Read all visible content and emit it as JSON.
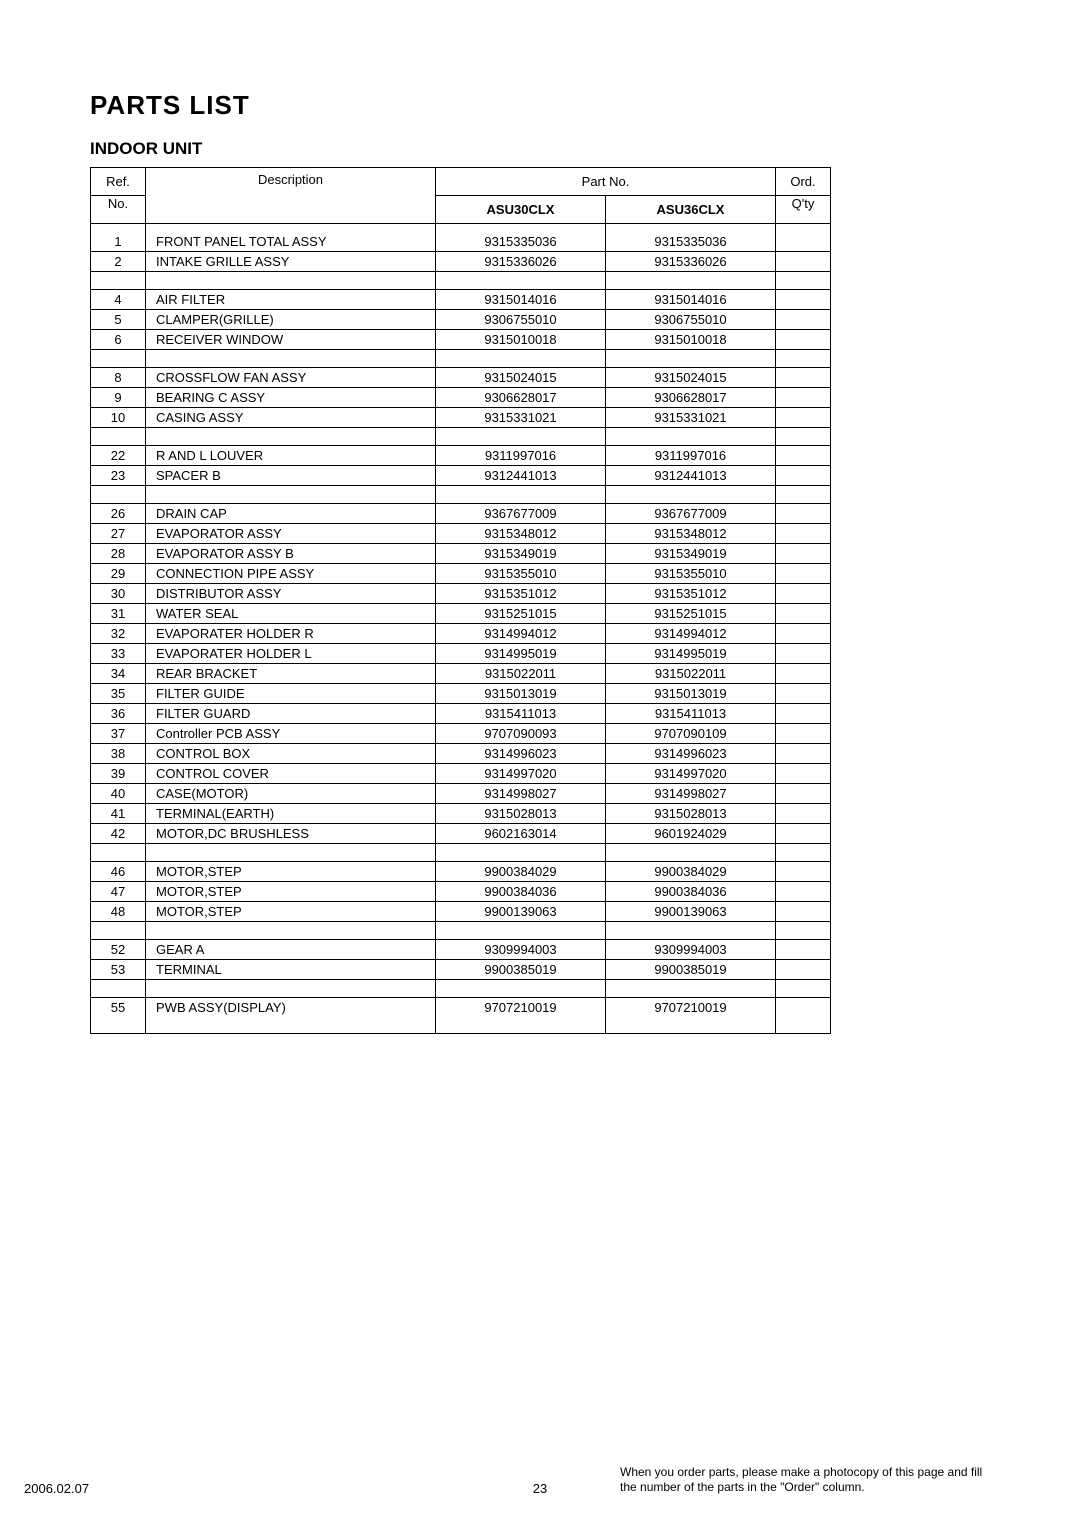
{
  "title": "PARTS LIST",
  "subtitle": "INDOOR  UNIT",
  "header": {
    "ref_top": "Ref.",
    "ref_bot": "No.",
    "description": "Description",
    "partno_span": "Part  No.",
    "model_a": "ASU30CLX",
    "model_b": "ASU36CLX",
    "ord_top": "Ord.",
    "ord_bot": "Q'ty"
  },
  "rows": [
    {
      "ref": "1",
      "desc": "FRONT PANEL TOTAL ASSY",
      "a": "9315335036",
      "b": "9315335036"
    },
    {
      "ref": "2",
      "desc": "INTAKE GRILLE ASSY",
      "a": "9315336026",
      "b": "9315336026"
    },
    {
      "blank": true
    },
    {
      "ref": "4",
      "desc": "AIR FILTER",
      "a": "9315014016",
      "b": "9315014016"
    },
    {
      "ref": "5",
      "desc": "CLAMPER(GRILLE)",
      "a": "9306755010",
      "b": "9306755010"
    },
    {
      "ref": "6",
      "desc": "RECEIVER WINDOW",
      "a": "9315010018",
      "b": "9315010018"
    },
    {
      "blank": true
    },
    {
      "ref": "8",
      "desc": "CROSSFLOW FAN ASSY",
      "a": "9315024015",
      "b": "9315024015"
    },
    {
      "ref": "9",
      "desc": "BEARING C ASSY",
      "a": "9306628017",
      "b": "9306628017"
    },
    {
      "ref": "10",
      "desc": "CASING ASSY",
      "a": "9315331021",
      "b": "9315331021"
    },
    {
      "blank": true
    },
    {
      "ref": "22",
      "desc": "R AND L LOUVER",
      "a": "9311997016",
      "b": "9311997016"
    },
    {
      "ref": "23",
      "desc": "SPACER B",
      "a": "9312441013",
      "b": "9312441013"
    },
    {
      "blank": true
    },
    {
      "ref": "26",
      "desc": "DRAIN CAP",
      "a": "9367677009",
      "b": "9367677009"
    },
    {
      "ref": "27",
      "desc": "EVAPORATOR ASSY",
      "a": "9315348012",
      "b": "9315348012"
    },
    {
      "ref": "28",
      "desc": "EVAPORATOR ASSY B",
      "a": "9315349019",
      "b": "9315349019"
    },
    {
      "ref": "29",
      "desc": "CONNECTION PIPE ASSY",
      "a": "9315355010",
      "b": "9315355010"
    },
    {
      "ref": "30",
      "desc": "DISTRIBUTOR ASSY",
      "a": "9315351012",
      "b": "9315351012"
    },
    {
      "ref": "31",
      "desc": "WATER SEAL",
      "a": "9315251015",
      "b": "9315251015"
    },
    {
      "ref": "32",
      "desc": "EVAPORATER HOLDER R",
      "a": "9314994012",
      "b": "9314994012"
    },
    {
      "ref": "33",
      "desc": "EVAPORATER HOLDER L",
      "a": "9314995019",
      "b": "9314995019"
    },
    {
      "ref": "34",
      "desc": "REAR BRACKET",
      "a": "9315022011",
      "b": "9315022011"
    },
    {
      "ref": "35",
      "desc": "FILTER GUIDE",
      "a": "9315013019",
      "b": "9315013019"
    },
    {
      "ref": "36",
      "desc": "FILTER GUARD",
      "a": "9315411013",
      "b": "9315411013"
    },
    {
      "ref": "37",
      "desc": "Controller PCB ASSY",
      "a": "9707090093",
      "b": "9707090109"
    },
    {
      "ref": "38",
      "desc": "CONTROL BOX",
      "a": "9314996023",
      "b": "9314996023"
    },
    {
      "ref": "39",
      "desc": "CONTROL COVER",
      "a": "9314997020",
      "b": "9314997020"
    },
    {
      "ref": "40",
      "desc": "CASE(MOTOR)",
      "a": "9314998027",
      "b": "9314998027"
    },
    {
      "ref": "41",
      "desc": "TERMINAL(EARTH)",
      "a": "9315028013",
      "b": "9315028013"
    },
    {
      "ref": "42",
      "desc": "MOTOR,DC BRUSHLESS",
      "a": "9602163014",
      "b": "9601924029"
    },
    {
      "blank": true
    },
    {
      "ref": "46",
      "desc": "MOTOR,STEP",
      "a": "9900384029",
      "b": "9900384029"
    },
    {
      "ref": "47",
      "desc": "MOTOR,STEP",
      "a": "9900384036",
      "b": "9900384036"
    },
    {
      "ref": "48",
      "desc": "MOTOR,STEP",
      "a": "9900139063",
      "b": "9900139063"
    },
    {
      "blank": true
    },
    {
      "ref": "52",
      "desc": "GEAR A",
      "a": "9309994003",
      "b": "9309994003"
    },
    {
      "ref": "53",
      "desc": "TERMINAL",
      "a": "9900385019",
      "b": "9900385019"
    },
    {
      "blank": true
    },
    {
      "ref": "55",
      "desc": "PWB ASSY(DISPLAY)",
      "a": "9707210019",
      "b": "9707210019"
    }
  ],
  "footer": {
    "date": "2006.02.07",
    "page": "23",
    "note": "When you order parts, please make a photocopy of this page and fill the number of the parts in the \"Order\" column."
  }
}
